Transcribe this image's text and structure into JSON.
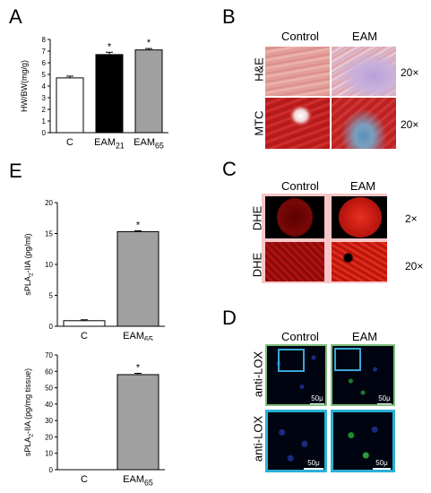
{
  "panels": {
    "A": {
      "letter": "A"
    },
    "B": {
      "letter": "B",
      "col_control": "Control",
      "col_eam": "EAM",
      "row_he": "H&E",
      "row_mtc": "MTC",
      "mag1": "20×",
      "mag2": "20×"
    },
    "C": {
      "letter": "C",
      "col_control": "Control",
      "col_eam": "EAM",
      "row1": "DHE",
      "row2": "DHE",
      "mag1": "2×",
      "mag2": "20×"
    },
    "D": {
      "letter": "D",
      "col_control": "Control",
      "col_eam": "EAM",
      "row1": "anti-LOX",
      "row2": "anti-LOX",
      "scale": "50μ"
    },
    "E": {
      "letter": "E"
    }
  },
  "chart_data": [
    {
      "type": "bar",
      "categories": [
        "C",
        "EAM21",
        "EAM65"
      ],
      "values": [
        4.7,
        6.7,
        7.1
      ],
      "errors": [
        0.15,
        0.2,
        0.12
      ],
      "significant": [
        false,
        true,
        true
      ],
      "ylabel": "HW/BW(mg/g)",
      "ylim": [
        0,
        8
      ],
      "yticks": [
        "0",
        "1",
        "2",
        "3",
        "4",
        "5",
        "6",
        "7",
        "8"
      ],
      "colors": [
        "#ffffff",
        "#000000",
        "#a0a0a0"
      ],
      "star": "*"
    },
    {
      "type": "bar",
      "categories": [
        "C",
        "EAM65"
      ],
      "values": [
        0.9,
        15.3
      ],
      "errors": [
        0.15,
        0.15
      ],
      "significant": [
        false,
        true
      ],
      "ylabel": "sPLA2-IIA (pg/ml)",
      "ylim": [
        0,
        20
      ],
      "yticks": [
        "0",
        "5",
        "10",
        "15",
        "20"
      ],
      "colors": [
        "#ffffff",
        "#a0a0a0"
      ],
      "star": "*"
    },
    {
      "type": "bar",
      "categories": [
        "C",
        "EAM65"
      ],
      "values": [
        0,
        58
      ],
      "errors": [
        0,
        0.8
      ],
      "significant": [
        false,
        true
      ],
      "ylabel": "sPLA2-IIA (pg/mg tissue)",
      "ylim": [
        0,
        70
      ],
      "yticks": [
        "0",
        "10",
        "20",
        "30",
        "40",
        "50",
        "60",
        "70"
      ],
      "colors": [
        "#ffffff",
        "#a0a0a0"
      ],
      "star": "*"
    }
  ]
}
